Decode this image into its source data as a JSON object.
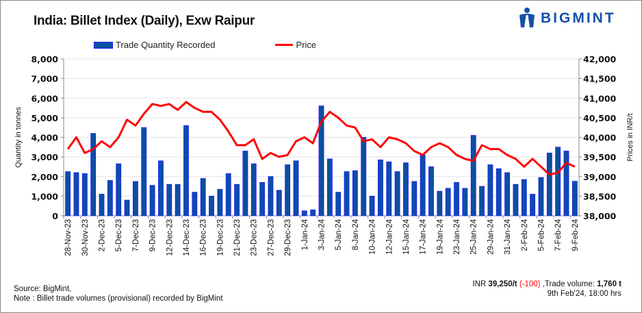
{
  "title": "India: Billet Index (Daily), Exw Raipur",
  "logo": {
    "text": "BIGMINT",
    "color": "#1450a8"
  },
  "footer": {
    "source": "Source: BigMint,",
    "note": "Note : Billet trade volumes (provisional) recorded by BigMint",
    "summary_prefix": "INR ",
    "price": "39,250/t",
    "change": "(-100)",
    "volume_prefix": " ,Trade volume: ",
    "volume": "1,760 t",
    "timestamp": "9th Feb'24, 18:00 hrs"
  },
  "chart_data": {
    "type": "bar+line",
    "title": "India: Billet Index (Daily), Exw Raipur",
    "legend_position": "top",
    "grid": true,
    "ylabel_left": "Quantity in tonnes",
    "ylabel_right": "Prices in INR/t",
    "ylim_left": [
      0,
      8000
    ],
    "ylim_right": [
      38000,
      42000
    ],
    "yticks_left": [
      "0",
      "1,000",
      "2,000",
      "3,000",
      "4,000",
      "5,000",
      "6,000",
      "7,000",
      "8,000"
    ],
    "yticks_right": [
      "38,000",
      "38,500",
      "39,000",
      "39,500",
      "40,000",
      "40,500",
      "41,000",
      "41,500",
      "42,000"
    ],
    "x_tick_labels": [
      "28-Nov-23",
      "30-Nov-23",
      "2-Dec-23",
      "5-Dec-23",
      "7-Dec-23",
      "9-Dec-23",
      "12-Dec-23",
      "14-Dec-23",
      "16-Dec-23",
      "19-Dec-23",
      "21-Dec-23",
      "23-Dec-23",
      "27-Dec-23",
      "29-Dec-23",
      "1-Jan-24",
      "3-Jan-24",
      "5-Jan-24",
      "8-Jan-24",
      "10-Jan-24",
      "12-Jan-24",
      "15-Jan-24",
      "17-Jan-24",
      "19-Jan-24",
      "23-Jan-24",
      "25-Jan-24",
      "29-Jan-24",
      "31-Jan-24",
      "2-Feb-24",
      "5-Feb-24",
      "7-Feb-24",
      "9-Feb-24"
    ],
    "series": [
      {
        "name": "Trade Quantity Recorded",
        "type": "bar",
        "axis": "left",
        "color": "#0b4fa3",
        "values": [
          2250,
          2200,
          2150,
          4200,
          1100,
          1800,
          2650,
          800,
          1750,
          4500,
          1550,
          2800,
          1600,
          1600,
          4600,
          1200,
          1900,
          1000,
          1350,
          2150,
          1600,
          3300,
          2650,
          1700,
          2000,
          1300,
          2600,
          2800,
          250,
          300,
          5600,
          2900,
          1200,
          2250,
          2300,
          4000,
          1000,
          2850,
          2750,
          2250,
          2700,
          1750,
          3100,
          2500,
          1250,
          1400,
          1700,
          1400,
          4100,
          1500,
          2600,
          2400,
          2200,
          1600,
          1850,
          1100,
          1950,
          3200,
          3500,
          3300,
          1760
        ]
      },
      {
        "name": "Price",
        "type": "line",
        "axis": "right",
        "color": "#ff0000",
        "values": [
          39700,
          40000,
          39600,
          39700,
          39900,
          39750,
          40000,
          40450,
          40300,
          40600,
          40850,
          40800,
          40850,
          40700,
          40900,
          40750,
          40650,
          40650,
          40450,
          40150,
          39800,
          39800,
          39950,
          39450,
          39600,
          39500,
          39550,
          39900,
          40000,
          39850,
          40400,
          40650,
          40500,
          40300,
          40250,
          39900,
          39950,
          39750,
          40000,
          39950,
          39850,
          39650,
          39550,
          39750,
          39850,
          39750,
          39550,
          39450,
          39400,
          39800,
          39700,
          39700,
          39550,
          39450,
          39250,
          39450,
          39250,
          39050,
          39100,
          39350,
          39250
        ]
      }
    ]
  }
}
